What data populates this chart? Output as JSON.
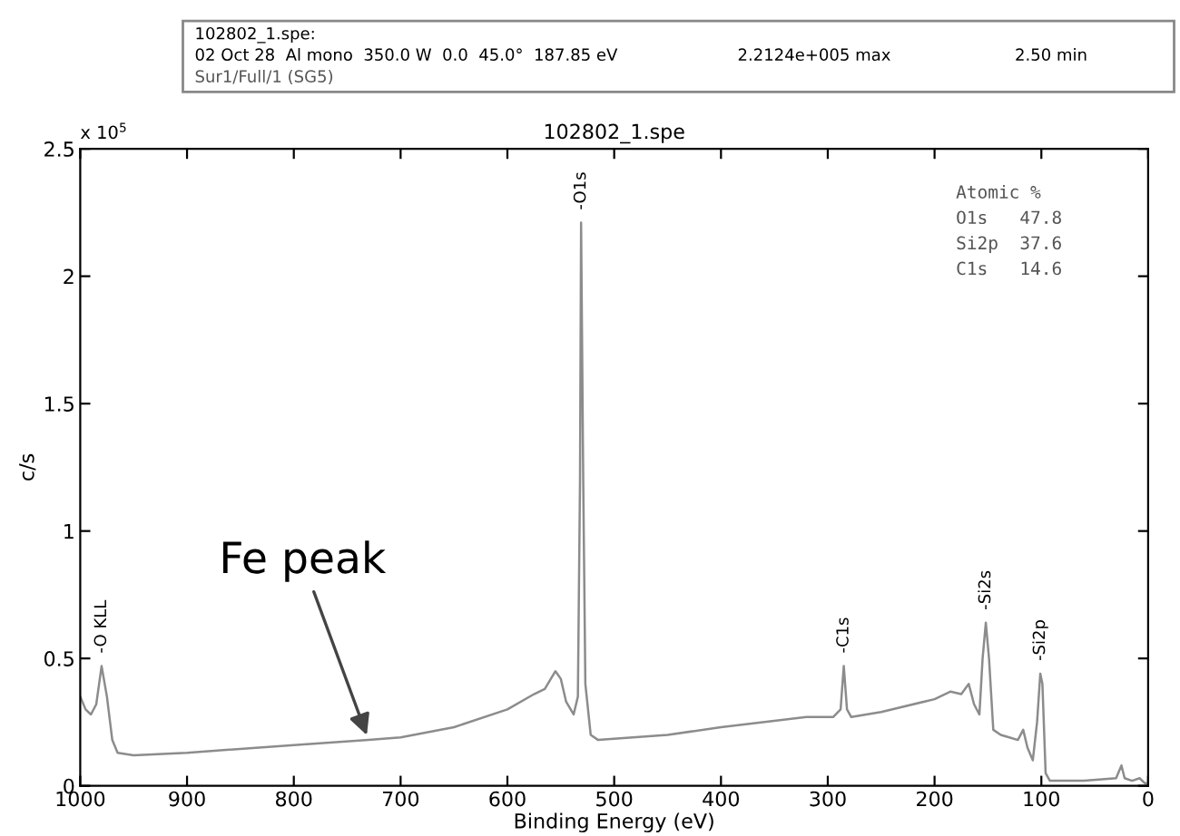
{
  "chart_data": {
    "type": "line",
    "title": "102802_1.spe",
    "xlabel": "Binding Energy (eV)",
    "ylabel": "c/s",
    "xlim": [
      1000,
      0
    ],
    "xticks": [
      1000,
      900,
      800,
      700,
      600,
      500,
      400,
      300,
      200,
      100,
      0
    ],
    "ylim": [
      0,
      2.5
    ],
    "yticks": [
      0,
      0.5,
      1,
      1.5,
      2,
      2.5
    ],
    "grid": false,
    "legend": false,
    "marker": "none",
    "line_style": "solid",
    "series": [
      {
        "color": "#8c8c8c",
        "x": [
          1000,
          995,
          990,
          985,
          980,
          975,
          970,
          965,
          950,
          900,
          800,
          730,
          700,
          650,
          600,
          575,
          565,
          555,
          550,
          545,
          538,
          534,
          532,
          531,
          529,
          527,
          522,
          515,
          450,
          400,
          320,
          295,
          288,
          285,
          282,
          278,
          250,
          200,
          185,
          175,
          168,
          163,
          158,
          155,
          152,
          149,
          145,
          138,
          130,
          122,
          117,
          113,
          108,
          104,
          101,
          99,
          96,
          92,
          60,
          30,
          25,
          22,
          15,
          8,
          3,
          0
        ],
        "values": [
          0.35,
          0.3,
          0.28,
          0.32,
          0.47,
          0.35,
          0.18,
          0.13,
          0.12,
          0.13,
          0.16,
          0.18,
          0.19,
          0.23,
          0.3,
          0.36,
          0.38,
          0.45,
          0.42,
          0.33,
          0.28,
          0.35,
          1.2,
          2.21,
          1.2,
          0.4,
          0.2,
          0.18,
          0.2,
          0.23,
          0.27,
          0.27,
          0.3,
          0.47,
          0.3,
          0.27,
          0.29,
          0.34,
          0.37,
          0.36,
          0.4,
          0.32,
          0.28,
          0.5,
          0.64,
          0.5,
          0.22,
          0.2,
          0.19,
          0.18,
          0.22,
          0.15,
          0.1,
          0.25,
          0.44,
          0.4,
          0.05,
          0.02,
          0.02,
          0.03,
          0.08,
          0.03,
          0.02,
          0.03,
          0.01,
          0.01
        ]
      }
    ],
    "annotations": [
      "102802_1.spe:",
      "02 Oct 28  Al mono  350.0 W  0.0  45.0°  187.85 eV",
      "2.2124e+005 max",
      "2.50 min",
      "Sur1/Full/1 (SG5)",
      "x 10$^{5}$",
      "Atomic %",
      "O1s   47.8",
      "Si2p  37.6",
      "C1s   14.6",
      {
        "text": "-O KLL",
        "x": 980,
        "y": 0.47
      },
      {
        "text": "-O1s",
        "x": 531,
        "y": 2.21
      },
      {
        "text": "-C1s",
        "x": 285,
        "y": 0.47
      },
      {
        "text": "-Si2s",
        "x": 152,
        "y": 0.64
      },
      {
        "text": "-Si2p",
        "x": 101,
        "y": 0.44
      },
      {
        "text": "Fe peak",
        "x": 730,
        "y": 0.18
      }
    ]
  }
}
